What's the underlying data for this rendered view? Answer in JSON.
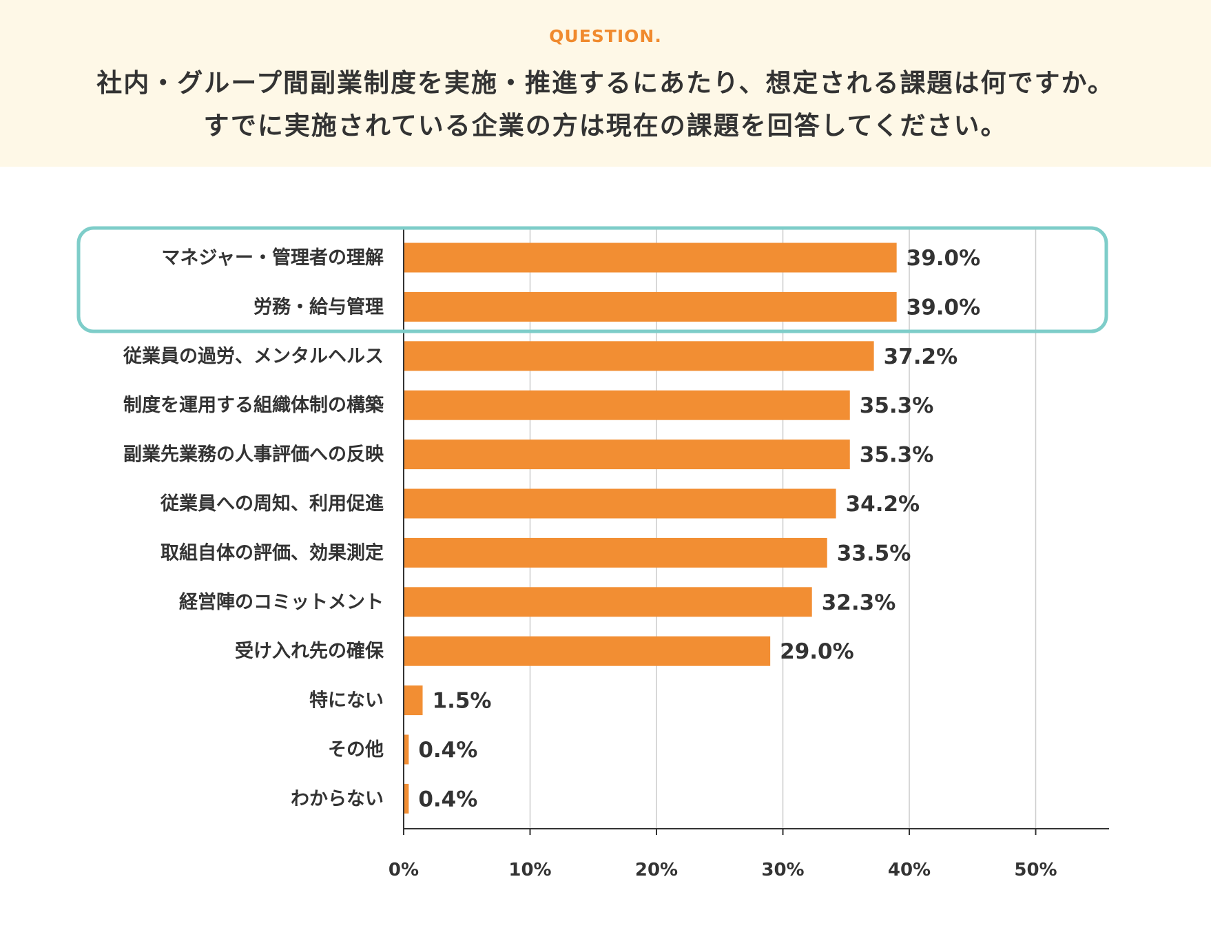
{
  "header": {
    "tag": "QUESTION.",
    "question_line1": "社内・グループ間副業制度を実施・推進するにあたり、想定される課題は何ですか。",
    "question_line2": "すでに実施されている企業の方は現在の課題を回答してください。"
  },
  "colors": {
    "header_bg": "#fef8e7",
    "accent": "#f08a2e",
    "bar": "#f28e33",
    "highlight": "#7ecdc9",
    "grid": "#cccccc",
    "axis": "#333333",
    "text": "#333333"
  },
  "chart_data": {
    "type": "bar",
    "orientation": "horizontal",
    "categories": [
      "マネジャー・管理者の理解",
      "労務・給与管理",
      "従業員の過労、メンタルヘルス",
      "制度を運用する組織体制の構築",
      "副業先業務の人事評価への反映",
      "従業員への周知、利用促進",
      "取組自体の評価、効果測定",
      "経営陣のコミットメント",
      "受け入れ先の確保",
      "特にない",
      "その他",
      "わからない"
    ],
    "values": [
      39.0,
      39.0,
      37.2,
      35.3,
      35.3,
      34.2,
      33.5,
      32.3,
      29.0,
      1.5,
      0.4,
      0.4
    ],
    "value_labels": [
      "39.0%",
      "39.0%",
      "37.2%",
      "35.3%",
      "35.3%",
      "34.2%",
      "33.5%",
      "32.3%",
      "29.0%",
      "1.5%",
      "0.4%",
      "0.4%"
    ],
    "x_ticks": [
      0,
      10,
      20,
      30,
      40,
      50
    ],
    "x_tick_labels": [
      "0%",
      "10%",
      "20%",
      "30%",
      "40%",
      "50%"
    ],
    "xlim": [
      0,
      56
    ],
    "grid": true,
    "highlighted_categories": [
      "マネジャー・管理者の理解",
      "労務・給与管理"
    ]
  }
}
